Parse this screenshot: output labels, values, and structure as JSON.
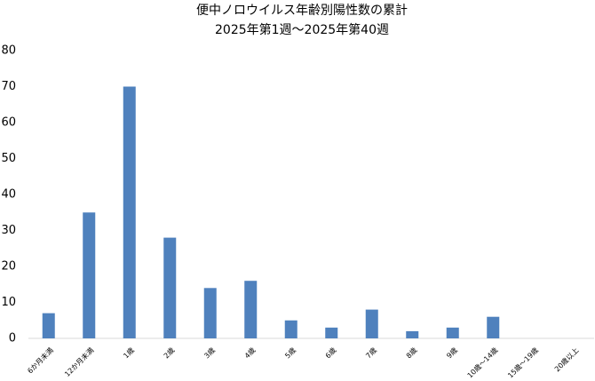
{
  "chart_data": {
    "type": "bar",
    "title": "便中ノロウイルス年齢別陽性数の累計",
    "subtitle": "2025年第1週～2025年第40週",
    "categories": [
      "6か月未満",
      "12か月未満",
      "1歳",
      "2歳",
      "3歳",
      "4歳",
      "5歳",
      "6歳",
      "7歳",
      "8歳",
      "9歳",
      "10歳～14歳",
      "15歳～19歳",
      "20歳以上"
    ],
    "values": [
      7,
      35,
      70,
      28,
      14,
      16,
      5,
      3,
      8,
      2,
      3,
      6,
      0,
      0
    ],
    "color": "#4f81bd",
    "ylim": [
      0,
      80
    ],
    "yticks": [
      0,
      10,
      20,
      30,
      40,
      50,
      60,
      70,
      80
    ],
    "grid": false
  }
}
